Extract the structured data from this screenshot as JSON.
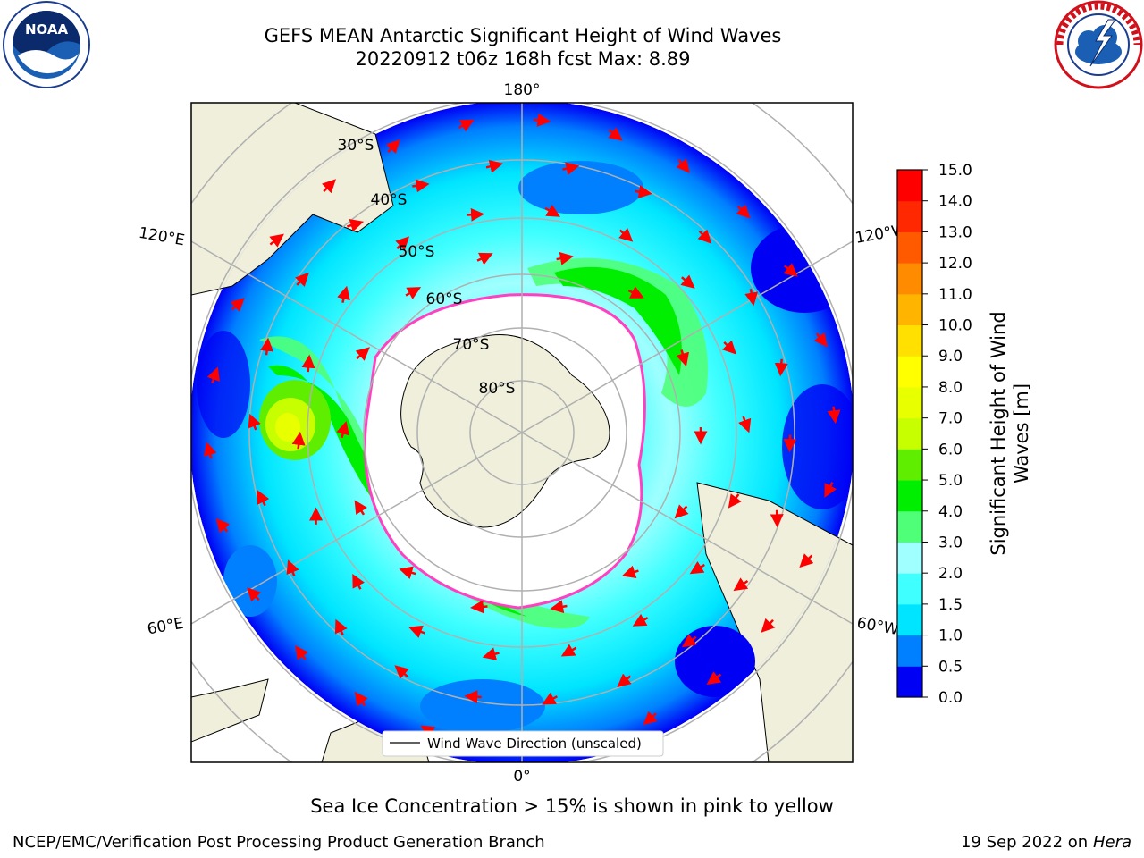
{
  "title_line1": "GEFS MEAN Antarctic Significant Height of Wind Waves",
  "title_line2": "20220912 t06z 168h fcst   Max: 8.89",
  "logos": {
    "left": {
      "name": "noaa-logo",
      "text": "NOAA",
      "ring_text": "NATIONAL OCEANIC AND ATMOSPHERIC ADMINISTRATION · U.S. DEPARTMENT OF COMMERCE"
    },
    "right": {
      "name": "nws-logo",
      "ring_text": "NATIONAL WEATHER SERVICE"
    }
  },
  "map": {
    "projection": "south-polar-stereographic",
    "lon_labels": {
      "top": "180°",
      "bottom": "0°",
      "upper_left": "120°E",
      "upper_right": "120°W",
      "lower_left": "60°E",
      "lower_right": "60°W"
    },
    "lat_labels": [
      "30°S",
      "40°S",
      "50°S",
      "60°S",
      "70°S",
      "80°S"
    ],
    "legend_label": "Wind Wave Direction (unscaled)"
  },
  "colorbar": {
    "label_line1": "Significant Height of Wind",
    "label_line2": "Waves [m]",
    "ticks": [
      "0.0",
      "0.5",
      "1.0",
      "1.5",
      "2.0",
      "3.0",
      "4.0",
      "5.0",
      "6.0",
      "7.0",
      "8.0",
      "9.0",
      "10.0",
      "11.0",
      "12.0",
      "13.0",
      "14.0",
      "15.0"
    ],
    "colors": [
      "#0000f5",
      "#0080ff",
      "#00e5ff",
      "#40ffff",
      "#a0ffff",
      "#50ff78",
      "#00ee00",
      "#60ee00",
      "#c8ff00",
      "#e8ff00",
      "#ffff00",
      "#ffe000",
      "#ffb400",
      "#ff8c00",
      "#ff5a00",
      "#ff2800",
      "#ff0000"
    ]
  },
  "caption": "Sea Ice Concentration > 15% is shown in pink to yellow",
  "footer_left": "NCEP/EMC/Verification Post Processing Product Generation Branch",
  "footer_right_date": "19 Sep 2022 on",
  "footer_right_host": "Hera"
}
